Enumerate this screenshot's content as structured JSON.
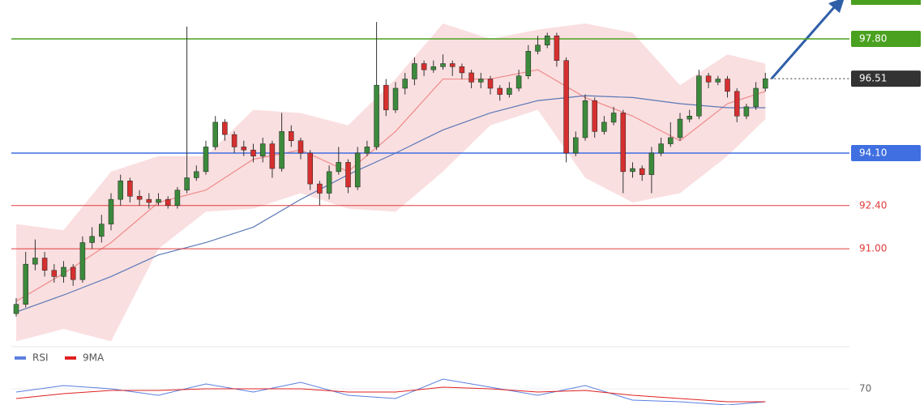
{
  "chart_data": [
    {
      "type": "candlestick",
      "up_color": "#3c8a3c",
      "down_color": "#d62f2f",
      "ylim": [
        88,
        99
      ],
      "open": [
        88.9,
        89.2,
        90.5,
        90.7,
        90.3,
        90.1,
        90.4,
        90.0,
        91.2,
        91.4,
        91.8,
        92.6,
        93.2,
        92.7,
        92.6,
        92.5,
        92.6,
        92.4,
        92.9,
        93.3,
        93.5,
        94.3,
        95.1,
        94.7,
        94.3,
        94.2,
        94.0,
        94.4,
        93.6,
        94.8,
        94.5,
        94.1,
        93.1,
        92.8,
        93.5,
        93.8,
        93.0,
        94.1,
        94.3,
        96.3,
        95.5,
        96.2,
        96.5,
        97.0,
        96.8,
        96.9,
        97.0,
        96.9,
        96.7,
        96.4,
        96.5,
        96.2,
        96.0,
        96.2,
        96.6,
        97.4,
        97.6,
        97.9,
        97.1,
        94.1,
        94.6,
        95.8,
        94.8,
        95.1,
        95.4,
        93.5,
        93.6,
        93.4,
        94.1,
        94.4,
        94.6,
        95.2,
        95.3,
        96.6,
        96.4,
        96.5,
        96.1,
        95.3,
        95.6,
        96.2
      ],
      "high": [
        89.4,
        90.9,
        91.3,
        90.9,
        90.5,
        90.6,
        90.5,
        91.4,
        91.7,
        92.1,
        92.8,
        93.4,
        93.3,
        92.9,
        92.8,
        92.8,
        92.7,
        93.0,
        98.2,
        93.7,
        94.5,
        95.3,
        95.2,
        94.8,
        94.5,
        94.4,
        94.6,
        94.5,
        95.4,
        95.0,
        94.6,
        94.2,
        93.2,
        93.7,
        94.3,
        93.9,
        94.3,
        94.5,
        98.35,
        96.5,
        96.4,
        96.7,
        97.2,
        97.1,
        97.1,
        97.3,
        97.1,
        97.0,
        96.8,
        96.7,
        96.6,
        96.3,
        96.4,
        96.8,
        97.6,
        97.9,
        98.0,
        98.0,
        97.2,
        94.8,
        96.0,
        95.9,
        95.3,
        95.6,
        95.5,
        93.8,
        93.7,
        94.3,
        94.6,
        95.1,
        95.4,
        95.5,
        96.8,
        96.7,
        96.6,
        96.6,
        96.2,
        95.7,
        96.4,
        96.7
      ],
      "low": [
        88.8,
        89.1,
        90.3,
        90.1,
        89.9,
        89.9,
        89.8,
        89.9,
        91.0,
        91.2,
        91.6,
        92.4,
        92.5,
        92.4,
        92.3,
        92.4,
        92.3,
        92.3,
        92.8,
        93.2,
        93.4,
        94.2,
        94.5,
        94.1,
        94.0,
        93.8,
        93.8,
        93.3,
        93.5,
        94.3,
        93.9,
        92.9,
        92.4,
        92.6,
        93.4,
        92.8,
        92.9,
        94.0,
        94.2,
        95.3,
        95.4,
        96.0,
        96.3,
        96.6,
        96.7,
        96.8,
        96.6,
        96.5,
        96.2,
        96.2,
        96.0,
        95.8,
        95.9,
        96.1,
        96.5,
        97.3,
        97.5,
        96.9,
        93.8,
        94.0,
        94.5,
        94.6,
        94.7,
        95.0,
        92.8,
        93.3,
        93.2,
        92.8,
        94.0,
        94.3,
        94.5,
        95.1,
        95.2,
        96.2,
        96.3,
        95.9,
        95.1,
        95.2,
        95.5,
        96.1
      ],
      "close": [
        89.2,
        90.5,
        90.7,
        90.3,
        90.1,
        90.4,
        90.0,
        91.2,
        91.4,
        91.8,
        92.6,
        93.2,
        92.7,
        92.6,
        92.5,
        92.6,
        92.4,
        92.9,
        93.3,
        93.5,
        94.3,
        95.1,
        94.7,
        94.3,
        94.2,
        94.0,
        94.4,
        93.6,
        94.8,
        94.5,
        94.1,
        93.1,
        92.8,
        93.5,
        93.8,
        93.0,
        94.1,
        94.3,
        96.3,
        95.5,
        96.2,
        96.5,
        97.0,
        96.8,
        96.9,
        97.0,
        96.9,
        96.7,
        96.4,
        96.5,
        96.2,
        96.0,
        96.2,
        96.6,
        97.4,
        97.6,
        97.9,
        97.1,
        94.1,
        94.6,
        95.8,
        94.8,
        95.1,
        95.4,
        93.5,
        93.6,
        93.4,
        94.1,
        94.4,
        94.6,
        95.2,
        95.3,
        96.6,
        96.4,
        96.5,
        96.1,
        95.3,
        95.6,
        96.2,
        96.51
      ],
      "indicator_x": [
        0,
        5,
        10,
        15,
        20,
        25,
        30,
        35,
        40,
        45,
        50,
        55,
        60,
        65,
        70,
        75,
        79
      ],
      "bands": {
        "color": "#f7c9cc",
        "upper": [
          91.8,
          91.6,
          93.5,
          94.0,
          94.0,
          95.5,
          95.4,
          95.0,
          96.5,
          98.3,
          97.8,
          98.1,
          98.3,
          98.0,
          96.3,
          97.3,
          97.0
        ],
        "lower": [
          88.0,
          88.4,
          88.0,
          91.0,
          92.2,
          92.3,
          92.8,
          92.3,
          92.2,
          93.5,
          95.0,
          95.5,
          93.3,
          92.5,
          92.8,
          94.0,
          95.2
        ]
      },
      "ma_lines": [
        {
          "color": "#f08a8a",
          "values": [
            89.3,
            90.2,
            91.2,
            92.5,
            92.9,
            93.9,
            94.2,
            93.5,
            94.8,
            96.5,
            96.5,
            96.8,
            95.9,
            95.3,
            94.5,
            95.7,
            96.1
          ]
        },
        {
          "color": "#5a78b8",
          "values": [
            88.95,
            89.5,
            90.1,
            90.8,
            91.2,
            91.7,
            92.6,
            93.4,
            94.1,
            94.85,
            95.4,
            95.8,
            95.96,
            95.9,
            95.7,
            95.57,
            95.57
          ]
        }
      ],
      "levels": [
        {
          "value": 97.8,
          "label": "97.80",
          "color": "#4aa120",
          "box": true
        },
        {
          "value": 96.51,
          "label": "96.51",
          "color": "#333333",
          "box": true,
          "dotted": true
        },
        {
          "value": 94.1,
          "label": "94.10",
          "color": "#3f6fe0",
          "box": true
        },
        {
          "value": 92.4,
          "label": "92.40",
          "color": "#e03b3b",
          "box": false
        },
        {
          "value": 91.0,
          "label": "91.00",
          "color": "#e03b3b",
          "box": false
        }
      ]
    },
    {
      "type": "line",
      "ylim": [
        60,
        80
      ],
      "yticks": [
        70
      ],
      "x": [
        0,
        5,
        10,
        15,
        20,
        25,
        30,
        35,
        40,
        45,
        50,
        55,
        60,
        65,
        70,
        75,
        79
      ],
      "series": [
        {
          "name": "RSI",
          "color": "#5b7fe0",
          "values": [
            68,
            72,
            70,
            66,
            73,
            68,
            74,
            66,
            64,
            76,
            71,
            66,
            72,
            63,
            62,
            60,
            62
          ]
        },
        {
          "name": "9MA",
          "color": "#e02020",
          "values": [
            64,
            67,
            69,
            69,
            70,
            70,
            70,
            68,
            68,
            71,
            70,
            68,
            69,
            66,
            64,
            62,
            62
          ]
        }
      ]
    }
  ]
}
